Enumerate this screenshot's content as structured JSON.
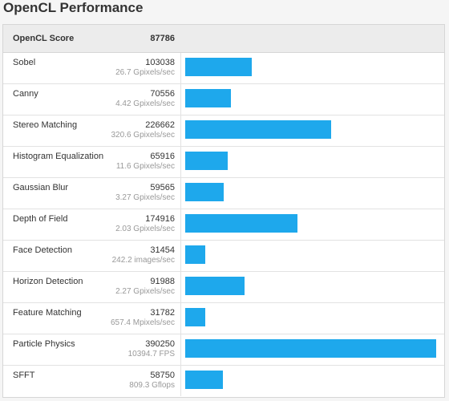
{
  "page": {
    "title": "OpenCL Performance"
  },
  "header": {
    "label": "OpenCL Score",
    "score": "87786"
  },
  "colors": {
    "bar": "#1ea8ec"
  },
  "chart_data": {
    "type": "bar",
    "max": 390250,
    "rows": [
      {
        "name": "Sobel",
        "score": "103038",
        "value": 103038,
        "rate": "26.7 Gpixels/sec"
      },
      {
        "name": "Canny",
        "score": "70556",
        "value": 70556,
        "rate": "4.42 Gpixels/sec"
      },
      {
        "name": "Stereo Matching",
        "score": "226662",
        "value": 226662,
        "rate": "320.6 Gpixels/sec"
      },
      {
        "name": "Histogram Equalization",
        "score": "65916",
        "value": 65916,
        "rate": "11.6 Gpixels/sec"
      },
      {
        "name": "Gaussian Blur",
        "score": "59565",
        "value": 59565,
        "rate": "3.27 Gpixels/sec"
      },
      {
        "name": "Depth of Field",
        "score": "174916",
        "value": 174916,
        "rate": "2.03 Gpixels/sec"
      },
      {
        "name": "Face Detection",
        "score": "31454",
        "value": 31454,
        "rate": "242.2 images/sec"
      },
      {
        "name": "Horizon Detection",
        "score": "91988",
        "value": 91988,
        "rate": "2.27 Gpixels/sec"
      },
      {
        "name": "Feature Matching",
        "score": "31782",
        "value": 31782,
        "rate": "657.4 Mpixels/sec"
      },
      {
        "name": "Particle Physics",
        "score": "390250",
        "value": 390250,
        "rate": "10394.7 FPS"
      },
      {
        "name": "SFFT",
        "score": "58750",
        "value": 58750,
        "rate": "809.3 Gflops"
      }
    ]
  }
}
